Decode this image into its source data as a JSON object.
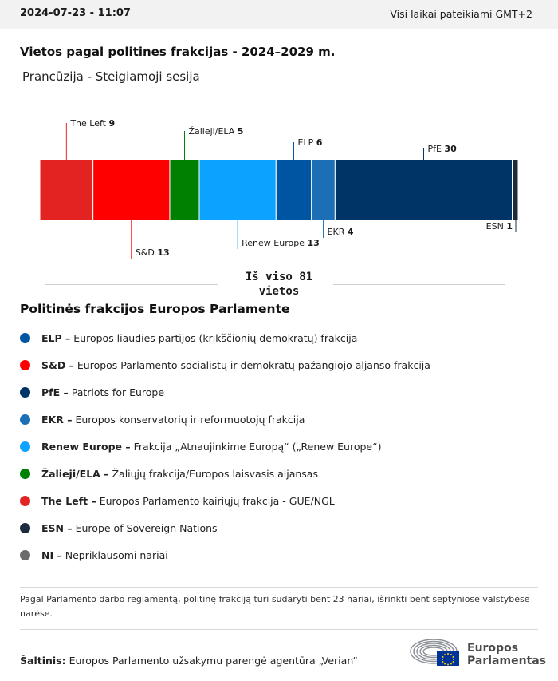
{
  "header": {
    "timestamp": "2024-07-23 - 11:07",
    "timezone_note": "Visi laikai pateikiami GMT+2"
  },
  "title": "Vietos pagal politines frakcijas - 2024–2029 m.",
  "subtitle": "Prancūzija - Steigiamoji sesija",
  "chart_data": {
    "type": "bar",
    "stacked": true,
    "orientation": "horizontal",
    "total": 81,
    "total_label": [
      "Iš viso 81",
      "vietos"
    ],
    "categories": [
      "The Left",
      "S&D",
      "Žalieji/ELA",
      "Renew Europe",
      "ELP",
      "EKR",
      "PfE",
      "ESN"
    ],
    "values": [
      9,
      13,
      5,
      13,
      6,
      4,
      30,
      1
    ],
    "colors": [
      "#e32322",
      "#ff0000",
      "#008000",
      "#0ca2ff",
      "#0055a2",
      "#1c6fb5",
      "#003366",
      "#1c2c3e"
    ],
    "label_positions": [
      "above",
      "below",
      "above",
      "below",
      "above",
      "below",
      "above",
      "below"
    ]
  },
  "legend": {
    "title": "Politinės frakcijos Europos Parlamente",
    "items": [
      {
        "abbr": "ELP –",
        "desc": "Europos liaudies partijos (krikščionių demokratų) frakcija",
        "color": "#0055a2"
      },
      {
        "abbr": "S&D –",
        "desc": "Europos Parlamento socialistų ir demokratų pažangiojo aljanso frakcija",
        "color": "#ff0000"
      },
      {
        "abbr": "PfE –",
        "desc": "Patriots for Europe",
        "color": "#003366"
      },
      {
        "abbr": "EKR –",
        "desc": "Europos konservatorių ir reformuotojų frakcija",
        "color": "#1c6fb5"
      },
      {
        "abbr": "Renew Europe –",
        "desc": "Frakcija „Atnaujinkime Europą“ („Renew Europe“)",
        "color": "#0ca2ff"
      },
      {
        "abbr": "Žalieji/ELA –",
        "desc": "Žaliųjų frakcija/Europos laisvasis aljansas",
        "color": "#008000"
      },
      {
        "abbr": "The Left –",
        "desc": "Europos Parlamento kairiųjų frakcija - GUE/NGL",
        "color": "#e32322"
      },
      {
        "abbr": "ESN –",
        "desc": "Europe of Sovereign Nations",
        "color": "#1c2c3e"
      },
      {
        "abbr": "NI –",
        "desc": "Nepriklausomi nariai",
        "color": "#6b6b6b"
      }
    ]
  },
  "note": "Pagal Parlamento darbo reglamentą, politinę frakciją turi sudaryti bent 23 nariai, išrinkti bent septyniose valstybėse narėse.",
  "source": {
    "label": "Šaltinis:",
    "text": " Europos Parlamento užsakymu parengė agentūra „Verian“"
  },
  "logo": {
    "line1": "Europos",
    "line2": "Parlamentas"
  }
}
